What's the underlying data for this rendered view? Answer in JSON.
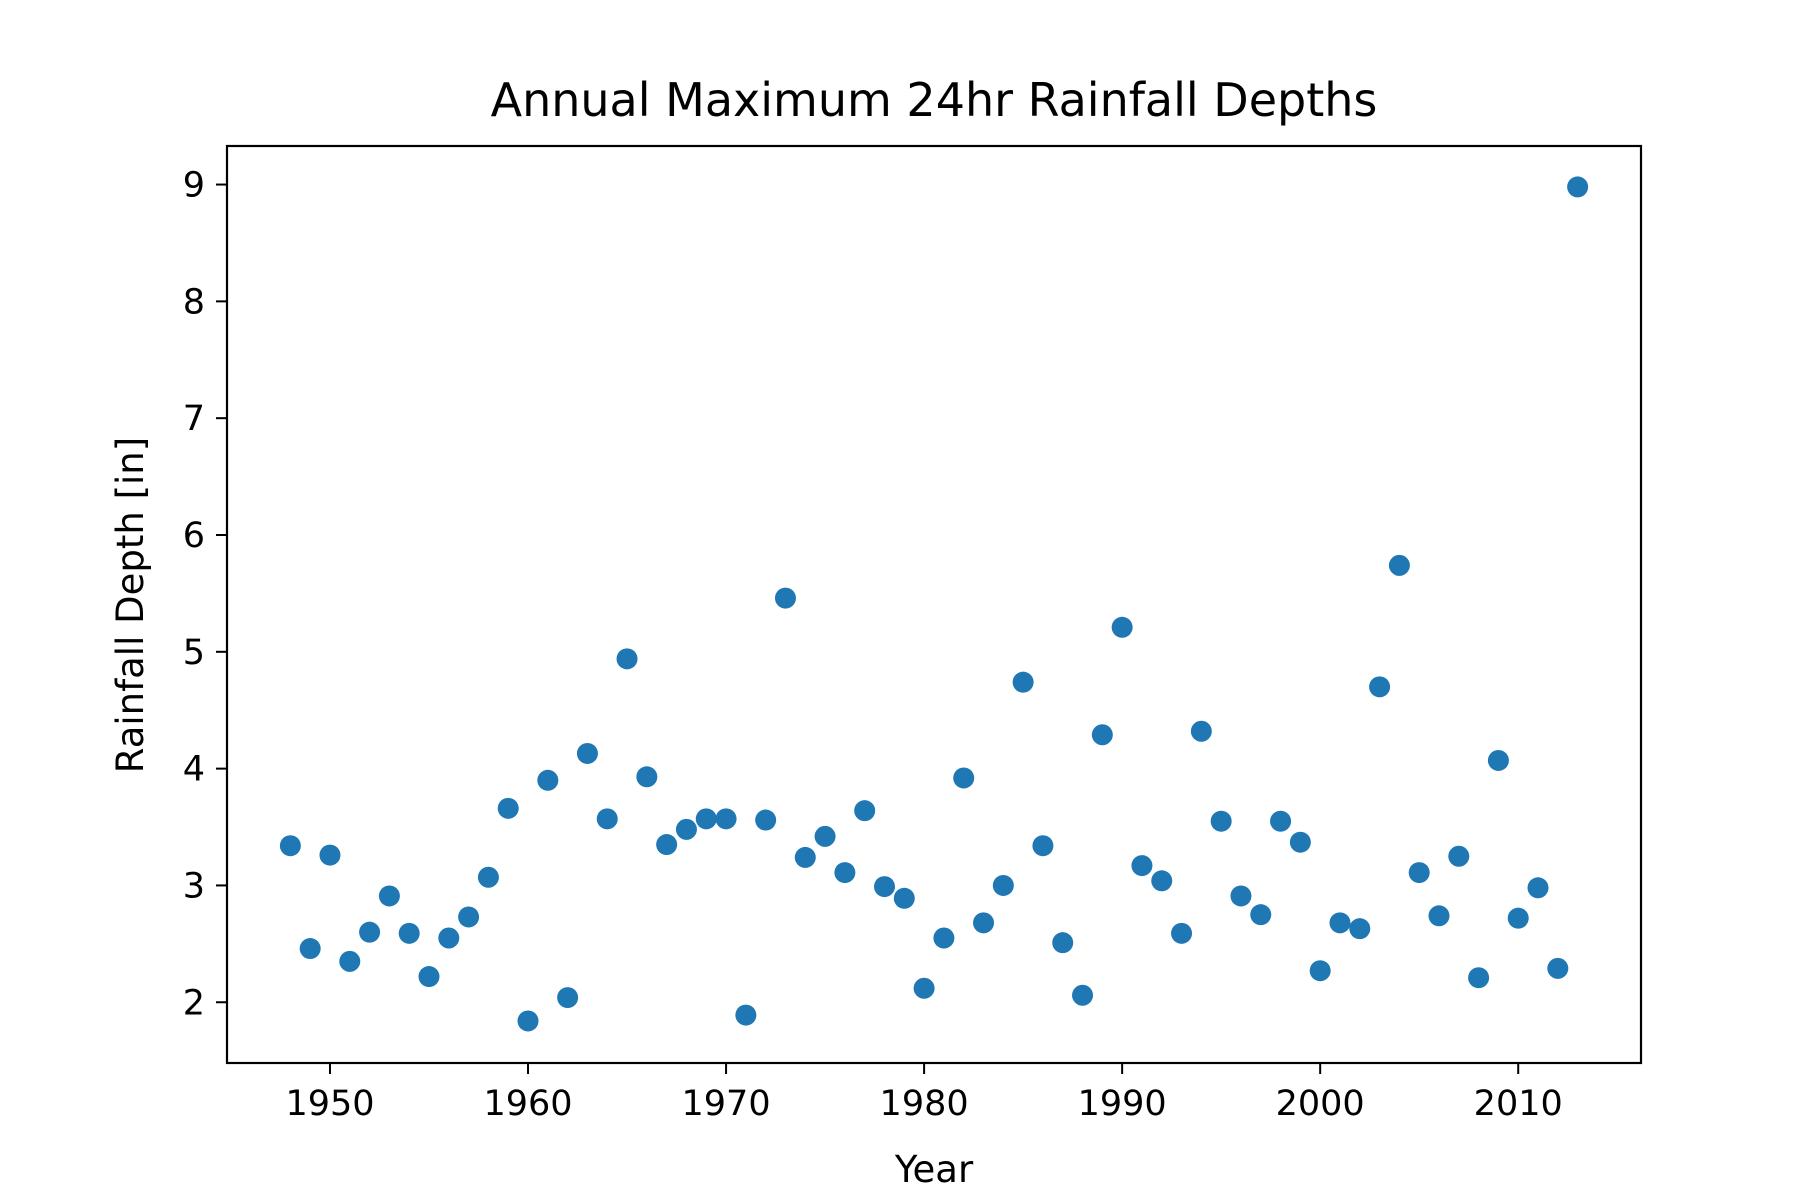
{
  "chart_data": {
    "type": "scatter",
    "title": "Annual Maximum 24hr Rainfall Depths",
    "xlabel": "Year",
    "ylabel": "Rainfall Depth [in]",
    "xlim": [
      1944.8,
      2016.2
    ],
    "ylim": [
      1.48,
      9.33
    ],
    "xticks": [
      1950,
      1960,
      1970,
      1980,
      1990,
      2000,
      2010
    ],
    "yticks": [
      2,
      3,
      4,
      5,
      6,
      7,
      8,
      9
    ],
    "marker_color": "#1f77b4",
    "grid": false,
    "legend": "none",
    "series": [
      {
        "x": [
          1948,
          1949,
          1950,
          1951,
          1952,
          1953,
          1954,
          1955,
          1956,
          1957,
          1958,
          1959,
          1960,
          1961,
          1962,
          1963,
          1964,
          1965,
          1966,
          1967,
          1968,
          1969,
          1970,
          1971,
          1972,
          1973,
          1974,
          1975,
          1976,
          1977,
          1978,
          1979,
          1980,
          1981,
          1982,
          1983,
          1984,
          1985,
          1986,
          1987,
          1988,
          1989,
          1990,
          1991,
          1992,
          1993,
          1994,
          1995,
          1996,
          1997,
          1998,
          1999,
          2000,
          2001,
          2002,
          2003,
          2004,
          2005,
          2006,
          2007,
          2008,
          2009,
          2010,
          2011,
          2012,
          2013
        ],
        "y": [
          3.34,
          2.46,
          3.26,
          2.35,
          2.6,
          2.91,
          2.59,
          2.22,
          2.55,
          2.73,
          3.07,
          3.66,
          1.84,
          3.9,
          2.04,
          4.13,
          3.57,
          4.94,
          3.93,
          3.35,
          3.48,
          3.57,
          3.57,
          1.89,
          3.56,
          5.46,
          3.24,
          3.42,
          3.11,
          3.64,
          2.99,
          2.89,
          2.12,
          2.55,
          3.92,
          2.68,
          3.0,
          4.74,
          3.34,
          2.51,
          2.06,
          4.29,
          5.21,
          3.17,
          3.04,
          2.59,
          4.32,
          3.55,
          2.91,
          2.75,
          3.55,
          3.37,
          2.27,
          2.68,
          2.63,
          4.7,
          5.74,
          3.11,
          2.74,
          3.25,
          2.21,
          4.07,
          2.72,
          2.98,
          2.29,
          8.98
        ]
      }
    ]
  }
}
